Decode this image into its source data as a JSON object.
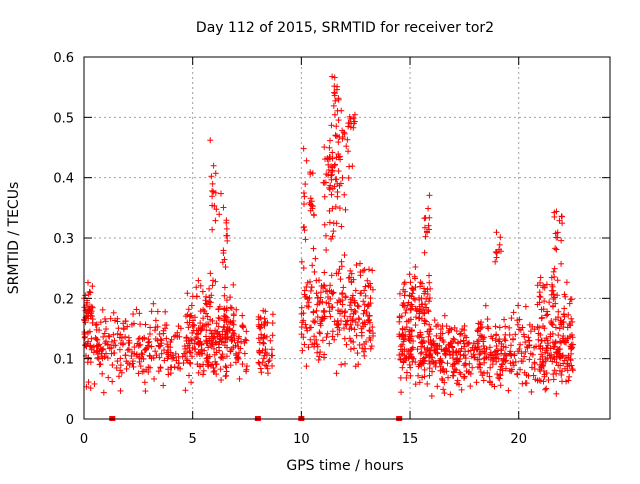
{
  "chart_data": {
    "type": "scatter",
    "title": "Day 112 of 2015, SRMTID for receiver tor2",
    "xlabel": "GPS time / hours",
    "ylabel": "SRMTID / TECUs",
    "xlim": [
      0,
      24.2
    ],
    "ylim": [
      0,
      0.6
    ],
    "x_ticks": [
      0,
      5,
      10,
      15,
      20
    ],
    "x_tick_labels": [
      "0",
      "5",
      "10",
      "15",
      "20"
    ],
    "y_ticks": [
      0,
      0.1,
      0.2,
      0.3,
      0.4,
      0.5,
      0.6
    ],
    "y_tick_labels": [
      "0",
      "0.1",
      "0.2",
      "0.3",
      "0.4",
      "0.5",
      "0.6"
    ],
    "grid": true,
    "marker": "plus",
    "color": "#ff0000",
    "zero_markers_x": [
      1.3,
      8.0,
      10.0,
      14.5
    ],
    "clusters": [
      {
        "x": [
          0.0,
          7.5
        ],
        "y_center": 0.12,
        "y_spread": 0.05,
        "count": 420
      },
      {
        "x": [
          0.0,
          0.4
        ],
        "y_center": 0.18,
        "y_spread": 0.05,
        "count": 40
      },
      {
        "x": [
          4.6,
          6.9
        ],
        "y_center": 0.16,
        "y_spread": 0.06,
        "count": 120
      },
      {
        "x": [
          5.8,
          6.1
        ],
        "y_center": 0.38,
        "y_spread": 0.06,
        "count": 14
      },
      {
        "x": [
          6.2,
          6.6
        ],
        "y_center": 0.3,
        "y_spread": 0.06,
        "count": 14
      },
      {
        "x": [
          8.0,
          8.7
        ],
        "y_center": 0.13,
        "y_spread": 0.05,
        "count": 55
      },
      {
        "x": [
          10.0,
          13.3
        ],
        "y_center": 0.18,
        "y_spread": 0.08,
        "count": 260
      },
      {
        "x": [
          10.1,
          10.6
        ],
        "y_center": 0.36,
        "y_spread": 0.07,
        "count": 25
      },
      {
        "x": [
          11.0,
          12.2
        ],
        "y_center": 0.4,
        "y_spread": 0.09,
        "count": 70
      },
      {
        "x": [
          11.3,
          12.5
        ],
        "y_center": 0.47,
        "y_spread": 0.05,
        "count": 30
      },
      {
        "x": [
          11.4,
          11.8
        ],
        "y_center": 0.54,
        "y_spread": 0.03,
        "count": 10
      },
      {
        "x": [
          14.5,
          22.5
        ],
        "y_center": 0.11,
        "y_spread": 0.05,
        "count": 620
      },
      {
        "x": [
          14.5,
          16.0
        ],
        "y_center": 0.19,
        "y_spread": 0.05,
        "count": 90
      },
      {
        "x": [
          15.6,
          15.9
        ],
        "y_center": 0.32,
        "y_spread": 0.04,
        "count": 12
      },
      {
        "x": [
          18.9,
          19.2
        ],
        "y_center": 0.28,
        "y_spread": 0.04,
        "count": 10
      },
      {
        "x": [
          20.8,
          22.5
        ],
        "y_center": 0.19,
        "y_spread": 0.06,
        "count": 70
      },
      {
        "x": [
          21.6,
          22.0
        ],
        "y_center": 0.32,
        "y_spread": 0.04,
        "count": 14
      }
    ]
  }
}
